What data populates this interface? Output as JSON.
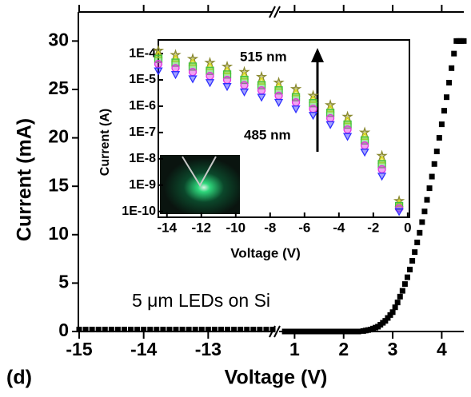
{
  "chart_data": [
    {
      "type": "scatter",
      "panel_label": "(d)",
      "x_label": "Voltage (V)",
      "y_label": "Current (mA)",
      "annotations": [
        "5 μm LEDs on Si"
      ],
      "color": "#000000",
      "marker": "square",
      "xlim": [
        [
          -15,
          -12
        ],
        [
          0.7,
          4.45
        ]
      ],
      "xticks": [
        -15,
        -14,
        -13,
        1,
        2,
        3,
        4
      ],
      "ylim": [
        0,
        33
      ],
      "yticks": [
        0,
        5,
        10,
        15,
        20,
        25,
        30
      ],
      "x": [
        -15,
        -14.9,
        -14.8,
        -14.7,
        -14.6,
        -14.5,
        -14.4,
        -14.3,
        -14.2,
        -14.1,
        -14,
        -13.9,
        -13.8,
        -13.7,
        -13.6,
        -13.5,
        -13.4,
        -13.3,
        -13.2,
        -13.1,
        -13,
        -12.9,
        -12.8,
        -12.7,
        -12.6,
        -12.5,
        -12.4,
        -12.3,
        -12.2,
        -12.1,
        -12,
        0.8,
        0.9,
        1,
        1.1,
        1.2,
        1.3,
        1.4,
        1.5,
        1.6,
        1.7,
        1.8,
        1.9,
        2,
        2.1,
        2.2,
        2.3,
        2.4,
        2.45,
        2.5,
        2.55,
        2.6,
        2.65,
        2.7,
        2.75,
        2.8,
        2.85,
        2.9,
        2.95,
        3,
        3.05,
        3.1,
        3.15,
        3.2,
        3.25,
        3.3,
        3.35,
        3.4,
        3.45,
        3.5,
        3.55,
        3.6,
        3.65,
        3.7,
        3.75,
        3.8,
        3.85,
        3.9,
        3.95,
        4,
        4.05,
        4.1,
        4.15,
        4.2,
        4.25,
        4.3,
        4.35,
        4.4,
        4.45
      ],
      "values": [
        0.2,
        0.2,
        0.2,
        0.2,
        0.2,
        0.2,
        0.2,
        0.2,
        0.2,
        0.2,
        0.2,
        0.2,
        0.2,
        0.2,
        0.2,
        0.2,
        0.2,
        0.2,
        0.2,
        0.2,
        0.2,
        0.2,
        0.2,
        0.2,
        0.2,
        0.2,
        0.2,
        0.2,
        0.2,
        0.2,
        0.2,
        0,
        0,
        0,
        0,
        0,
        0,
        0,
        0,
        0,
        0,
        0,
        0,
        0,
        0,
        0,
        0,
        0.05,
        0.1,
        0.15,
        0.2,
        0.3,
        0.4,
        0.5,
        0.7,
        0.9,
        1.1,
        1.4,
        1.7,
        2.0,
        2.5,
        3.0,
        3.6,
        4.2,
        4.9,
        5.6,
        6.4,
        7.3,
        8.2,
        9.2,
        10.2,
        11.3,
        12.4,
        13.6,
        14.8,
        16.0,
        17.3,
        18.6,
        20.0,
        21.4,
        22.8,
        24.2,
        25.7,
        27.2,
        28.7,
        30.0,
        30.0,
        30.0,
        30.0
      ]
    },
    {
      "type": "scatter",
      "x_label": "Voltage (V)",
      "y_label": "Current (A)",
      "annotations": [
        "515 nm",
        "485 nm"
      ],
      "log_y": true,
      "xlim": [
        -14.5,
        0.1
      ],
      "xticks": [
        -14,
        -12,
        -10,
        -8,
        -6,
        -4,
        -2,
        0
      ],
      "ylim": [
        6e-11,
        0.00033
      ],
      "yticks": [
        {
          "value": 0.0001,
          "label": "1E-4"
        },
        {
          "value": 1e-05,
          "label": "1E-5"
        },
        {
          "value": 1e-06,
          "label": "1E-6"
        },
        {
          "value": 1e-07,
          "label": "1E-7"
        },
        {
          "value": 1e-08,
          "label": "1E-8"
        },
        {
          "value": 1e-09,
          "label": "1E-9"
        },
        {
          "value": 1e-10,
          "label": "1E-10"
        }
      ],
      "x": [
        -14.5,
        -13.5,
        -12.5,
        -11.5,
        -10.5,
        -9.5,
        -8.5,
        -7.5,
        -6.5,
        -5.5,
        -4.5,
        -3.5,
        -2.5,
        -1.5,
        -0.5
      ],
      "series": [
        {
          "color": "#8a8a30",
          "marker": "star",
          "values": [
            0.00013,
            8.9e-05,
            6.3e-05,
            4.5e-05,
            3.2e-05,
            2e-05,
            1.3e-05,
            7.9e-06,
            4.5e-06,
            2.5e-06,
            1.1e-06,
            4e-07,
            1e-07,
            1.3e-08,
            2.5e-10
          ]
        },
        {
          "color": "#e0e020",
          "marker": "triangle-up",
          "values": [
            9e-05,
            6.3e-05,
            4.5e-05,
            3.2e-05,
            2.2e-05,
            1.4e-05,
            8.9e-06,
            5.6e-06,
            3.2e-06,
            1.8e-06,
            7.9e-07,
            2.8e-07,
            7.1e-08,
            9e-09,
            2e-10
          ]
        },
        {
          "color": "#40c040",
          "marker": "square",
          "values": [
            6.3e-05,
            4.5e-05,
            3.2e-05,
            2.2e-05,
            1.6e-05,
            1e-05,
            6.3e-06,
            4e-06,
            2.2e-06,
            1.3e-06,
            5.6e-07,
            2e-07,
            5e-08,
            6.3e-09,
            1.6e-10
          ]
        },
        {
          "color": "#e030e0",
          "marker": "circle",
          "values": [
            4e-05,
            2.8e-05,
            2e-05,
            1.4e-05,
            1e-05,
            6.3e-06,
            4e-06,
            2.5e-06,
            1.4e-06,
            7.9e-07,
            3.5e-07,
            1.3e-07,
            3.2e-08,
            4e-09,
            1.3e-10
          ]
        },
        {
          "color": "#3030ff",
          "marker": "triangle-down",
          "values": [
            2.2e-05,
            1.6e-05,
            1.1e-05,
            7.9e-06,
            5.6e-06,
            3.5e-06,
            2.2e-06,
            1.4e-06,
            7.9e-07,
            4.5e-07,
            2e-07,
            7.1e-08,
            1.8e-08,
            2.2e-09,
            1e-10
          ]
        }
      ]
    }
  ]
}
